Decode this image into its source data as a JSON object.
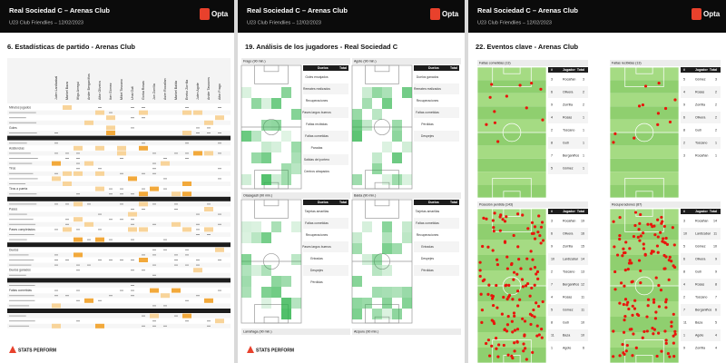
{
  "pages": [
    {
      "header": {
        "title": "Real Sociedad C – Arenas Club",
        "subtitle": "U23 Club Friendlies – 12/02/2023",
        "logo": "Opta"
      },
      "section": "6.   Estadísticas de partido - Arenas Club",
      "table": {
        "columns": [
          "Julen Lardizabal",
          "Markel Baza",
          "Iñigo Arregui",
          "Ander Berganiños",
          "Aitor Oliveira",
          "Iker Gómez",
          "Mikel Toscano",
          "Unai Guti",
          "Gorka Rosas",
          "Jon Zorrilla",
          "Asier Rocañan",
          "Markel Balda",
          "Eneko Zorrilla",
          "Julen Agote",
          "Ander Tavooms",
          "Aitor Frago"
        ],
        "rows": [
          "Minutos jugados",
          "Goles",
          "Asistencias",
          "Tiros",
          "Tiros a puerta",
          "Pases",
          "Pases completados",
          "Duelos",
          "Duelos ganados",
          "Faltas cometidas",
          "Faltas recibidas",
          "Tarjetas"
        ]
      },
      "footer": "STATS PERFORM"
    },
    {
      "header": {
        "title": "Real Sociedad C – Arenas Club",
        "subtitle": "U23 Club Friendlies – 12/02/2023",
        "logo": "Opta"
      },
      "section": "19.   Análisis de los jugadores - Real Sociedad C",
      "panels": [
        {
          "player": "Frago (90 min.)",
          "table_head": [
            "Duelos",
            "Total"
          ],
          "rows": [
            "Goles encajados",
            "Remates realizados",
            "Recuperaciones",
            "Pases largos buenos",
            "Faltas recibidas",
            "Faltas cometidas",
            "Paradas",
            "Salidas del portero",
            "Centros atrapados"
          ]
        },
        {
          "player": "Agote (90 min.)",
          "table_head": [
            "Duelos",
            "Total"
          ],
          "rows": [
            "Duelos ganados",
            "Remates realizados",
            "Recuperaciones",
            "Faltas cometidas",
            "Pérdidas",
            "Despejes"
          ]
        },
        {
          "player": "Olasagasti (90 min.)",
          "table_head": [
            "Duelos",
            "Total"
          ],
          "rows": [
            "Tarjetas amarillas",
            "Faltas cometidas",
            "Recuperaciones",
            "Pases largos buenos",
            "Entradas",
            "Despejes",
            "Pérdidas"
          ]
        },
        {
          "player": "Balda (90 min.)",
          "table_head": [
            "Duelos",
            "Total"
          ],
          "rows": [
            "Tarjetas amarillas",
            "Faltas cometidas",
            "Recuperaciones",
            "Entradas",
            "Despejes",
            "Pérdidas"
          ]
        }
      ],
      "bottom_labels": [
        "Larrañaga (90 min.)",
        "Aizpuru (90 min.)"
      ],
      "footer": "STATS PERFORM"
    },
    {
      "header": {
        "title": "Real Sociedad C – Arenas Club",
        "subtitle": "U23 Club Friendlies – 12/02/2023",
        "logo": "Opta"
      },
      "section": "22.   Eventos clave - Arenas Club",
      "panels": [
        {
          "title": "Faltas cometidas (13)",
          "table_head": [
            "#",
            "Jugador",
            "Total"
          ],
          "rows": [
            [
              "3",
              "Rocañan",
              "3"
            ],
            [
              "6",
              "Olivera",
              "2"
            ],
            [
              "9",
              "Zorrilla",
              "2"
            ],
            [
              "4",
              "Rosas",
              "1"
            ],
            [
              "2",
              "Toscano",
              "1"
            ],
            [
              "8",
              "Guti",
              "1"
            ],
            [
              "7",
              "Berganiños",
              "1"
            ],
            [
              "5",
              "Gómez",
              "1"
            ]
          ]
        },
        {
          "title": "Faltas recibidas (13)",
          "table_head": [
            "#",
            "Jugador",
            "Total"
          ],
          "rows": [
            [
              "5",
              "Gómez",
              "3"
            ],
            [
              "4",
              "Rosas",
              "2"
            ],
            [
              "9",
              "Zorrilla",
              "2"
            ],
            [
              "6",
              "Olivera",
              "2"
            ],
            [
              "8",
              "Guti",
              "2"
            ],
            [
              "2",
              "Toscano",
              "1"
            ],
            [
              "3",
              "Rocañan",
              "1"
            ]
          ]
        },
        {
          "title": "Posesión perdida (143)",
          "table_head": [
            "#",
            "Jugador",
            "Total"
          ],
          "rows": [
            [
              "3",
              "Rocañan",
              "19"
            ],
            [
              "6",
              "Olivera",
              "16"
            ],
            [
              "9",
              "Zorrilla",
              "15"
            ],
            [
              "10",
              "Lardizabal",
              "14"
            ],
            [
              "2",
              "Toscano",
              "13"
            ],
            [
              "7",
              "Berganiños",
              "12"
            ],
            [
              "4",
              "Rosas",
              "11"
            ],
            [
              "5",
              "Gómez",
              "11"
            ],
            [
              "8",
              "Guti",
              "10"
            ],
            [
              "11",
              "Baza",
              "10"
            ],
            [
              "1",
              "Agote",
              "6"
            ]
          ]
        },
        {
          "title": "Recuperaciones (87)",
          "table_head": [
            "#",
            "Jugador",
            "Total"
          ],
          "rows": [
            [
              "3",
              "Rocañan",
              "14"
            ],
            [
              "10",
              "Lardizabal",
              "11"
            ],
            [
              "5",
              "Gómez",
              "10"
            ],
            [
              "6",
              "Olivera",
              "9"
            ],
            [
              "8",
              "Guti",
              "9"
            ],
            [
              "4",
              "Rosas",
              "8"
            ],
            [
              "2",
              "Toscano",
              "7"
            ],
            [
              "7",
              "Berganiños",
              "6"
            ],
            [
              "11",
              "Baza",
              "5"
            ],
            [
              "1",
              "Agote",
              "4"
            ],
            [
              "9",
              "Zorrilla",
              "4"
            ]
          ]
        }
      ],
      "footer": "STATS PERFORM"
    }
  ]
}
